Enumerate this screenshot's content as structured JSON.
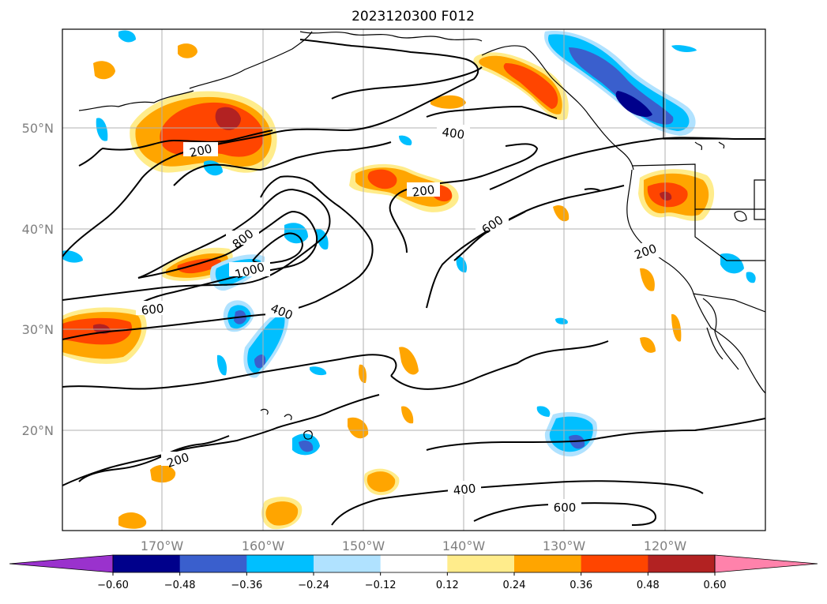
{
  "title": "2023120300 F012",
  "lat_labels": [
    "50°N",
    "40°N",
    "30°N",
    "20°N"
  ],
  "lon_labels": [
    "170°W",
    "160°W",
    "150°W",
    "140°W",
    "130°W",
    "120°W"
  ],
  "colorbar": {
    "ticks": [
      "−0.60",
      "−0.48",
      "−0.36",
      "−0.24",
      "−0.12",
      "0.12",
      "0.24",
      "0.36",
      "0.48",
      "0.60"
    ],
    "colors": [
      "#9a32cd",
      "#00008b",
      "#3a5fcd",
      "#00bfff",
      "#b0e2ff",
      "#ffffff",
      "#ffec8b",
      "#ffa500",
      "#ff4500",
      "#b22222",
      "#ff82ab"
    ]
  },
  "contour_labels": [
    "200",
    "200",
    "400",
    "600",
    "800",
    "1000",
    "400",
    "600",
    "200",
    "200",
    "400",
    "600"
  ]
}
